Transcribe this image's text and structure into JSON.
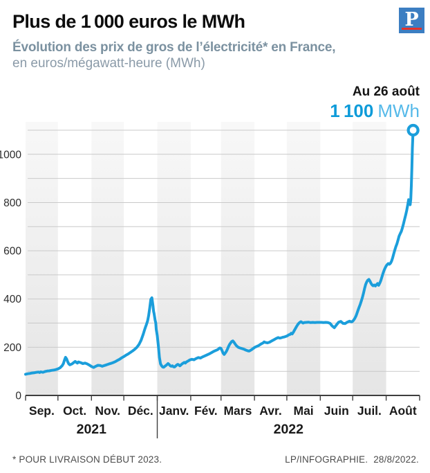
{
  "header": {
    "title": "Plus de 1 000 euros le MWh",
    "subtitle_bold": "Évolution des prix de gros de l’électricité* en France,",
    "subtitle_light": "en euros/mégawatt-heure (MWh)",
    "logo_letter": "P"
  },
  "annotation": {
    "date_label": "Au 26 août",
    "value": "1 100",
    "unit": "MWh"
  },
  "footer": {
    "note": "* POUR LIVRAISON DÉBUT 2023.",
    "credit": "LP/INFOGRAPHIE.",
    "date": "28/8/2022."
  },
  "colors": {
    "line": "#1b9edb",
    "marker_fill": "#ffffff",
    "value_blue": "#0d9bd9",
    "unit_blue": "#55b9e9",
    "grid": "#c9c9c9",
    "axis": "#3e3e3e",
    "band_top": "#f7f7f7",
    "band_bottom": "#e6e6e6",
    "label_dark": "#1a1a1a",
    "ylabel": "#2b2b2b"
  },
  "chart_data": {
    "type": "line",
    "title": "Évolution des prix de gros de l'électricité en France",
    "ylabel": "euros/mégawatt-heure (MWh)",
    "x_unit": "days since 2021-09-01",
    "ylim": [
      0,
      1150
    ],
    "grid_step": 100,
    "grid_max": 1100,
    "y_ticks": [
      0,
      200,
      400,
      600,
      800,
      1000
    ],
    "months": [
      {
        "label": "Sep.",
        "days": 30,
        "shaded": true
      },
      {
        "label": "Oct.",
        "days": 31,
        "shaded": false
      },
      {
        "label": "Nov.",
        "days": 30,
        "shaded": true
      },
      {
        "label": "Déc.",
        "days": 31,
        "shaded": false
      },
      {
        "label": "Janv.",
        "days": 31,
        "shaded": true
      },
      {
        "label": "Fév.",
        "days": 28,
        "shaded": false
      },
      {
        "label": "Mars",
        "days": 31,
        "shaded": true
      },
      {
        "label": "Avr.",
        "days": 30,
        "shaded": false
      },
      {
        "label": "Mai",
        "days": 31,
        "shaded": true
      },
      {
        "label": "Juin",
        "days": 30,
        "shaded": false
      },
      {
        "label": "Juil.",
        "days": 31,
        "shaded": true
      },
      {
        "label": "Août",
        "days": 31,
        "shaded": false
      }
    ],
    "years": [
      {
        "label": "2021",
        "from_month": 0,
        "to_month": 3
      },
      {
        "label": "2022",
        "from_month": 4,
        "to_month": 11
      }
    ],
    "series": [
      [
        0,
        88
      ],
      [
        2,
        90
      ],
      [
        4,
        91
      ],
      [
        6,
        93
      ],
      [
        8,
        94
      ],
      [
        10,
        96
      ],
      [
        12,
        97
      ],
      [
        13,
        95
      ],
      [
        14,
        98
      ],
      [
        16,
        96
      ],
      [
        18,
        99
      ],
      [
        20,
        101
      ],
      [
        22,
        102
      ],
      [
        24,
        104
      ],
      [
        26,
        105
      ],
      [
        28,
        107
      ],
      [
        30,
        110
      ],
      [
        32,
        115
      ],
      [
        34,
        124
      ],
      [
        35,
        132
      ],
      [
        36,
        146
      ],
      [
        37,
        158
      ],
      [
        38,
        152
      ],
      [
        39,
        140
      ],
      [
        40,
        131
      ],
      [
        41,
        127
      ],
      [
        43,
        131
      ],
      [
        45,
        138
      ],
      [
        46,
        141
      ],
      [
        47,
        137
      ],
      [
        48,
        134
      ],
      [
        49,
        139
      ],
      [
        51,
        136
      ],
      [
        53,
        132
      ],
      [
        55,
        134
      ],
      [
        57,
        131
      ],
      [
        59,
        126
      ],
      [
        61,
        120
      ],
      [
        63,
        116
      ],
      [
        65,
        121
      ],
      [
        67,
        125
      ],
      [
        69,
        124
      ],
      [
        71,
        121
      ],
      [
        73,
        124
      ],
      [
        75,
        127
      ],
      [
        77,
        130
      ],
      [
        79,
        133
      ],
      [
        81,
        136
      ],
      [
        83,
        140
      ],
      [
        85,
        145
      ],
      [
        87,
        150
      ],
      [
        89,
        156
      ],
      [
        91,
        161
      ],
      [
        93,
        167
      ],
      [
        95,
        172
      ],
      [
        97,
        178
      ],
      [
        99,
        184
      ],
      [
        101,
        191
      ],
      [
        103,
        199
      ],
      [
        105,
        211
      ],
      [
        107,
        229
      ],
      [
        109,
        254
      ],
      [
        110,
        269
      ],
      [
        111,
        282
      ],
      [
        112,
        295
      ],
      [
        113,
        309
      ],
      [
        114,
        331
      ],
      [
        115,
        363
      ],
      [
        116,
        399
      ],
      [
        117,
        405
      ],
      [
        118,
        372
      ],
      [
        118.6,
        348
      ],
      [
        119,
        341
      ],
      [
        120,
        312
      ],
      [
        120.6,
        301
      ],
      [
        121,
        274
      ],
      [
        122,
        248
      ],
      [
        123,
        205
      ],
      [
        124,
        158
      ],
      [
        125,
        131
      ],
      [
        126,
        123
      ],
      [
        127,
        118
      ],
      [
        128,
        117
      ],
      [
        129,
        121
      ],
      [
        130,
        124
      ],
      [
        131,
        128
      ],
      [
        132,
        132
      ],
      [
        133,
        128
      ],
      [
        134,
        123
      ],
      [
        135,
        121
      ],
      [
        136,
        123
      ],
      [
        137,
        119
      ],
      [
        138,
        118
      ],
      [
        139,
        122
      ],
      [
        140,
        126
      ],
      [
        141,
        129
      ],
      [
        142,
        126
      ],
      [
        143,
        123
      ],
      [
        144,
        127
      ],
      [
        145,
        131
      ],
      [
        146,
        134
      ],
      [
        147,
        137
      ],
      [
        148,
        134
      ],
      [
        149,
        139
      ],
      [
        151,
        144
      ],
      [
        152,
        147
      ],
      [
        154,
        150
      ],
      [
        156,
        148
      ],
      [
        158,
        153
      ],
      [
        160,
        157
      ],
      [
        162,
        155
      ],
      [
        164,
        160
      ],
      [
        166,
        164
      ],
      [
        168,
        168
      ],
      [
        170,
        172
      ],
      [
        172,
        177
      ],
      [
        174,
        182
      ],
      [
        176,
        186
      ],
      [
        178,
        190
      ],
      [
        179,
        194
      ],
      [
        180,
        197
      ],
      [
        181,
        195
      ],
      [
        182,
        186
      ],
      [
        183,
        175
      ],
      [
        184,
        170
      ],
      [
        185,
        176
      ],
      [
        186,
        183
      ],
      [
        187,
        192
      ],
      [
        188,
        203
      ],
      [
        189,
        212
      ],
      [
        190,
        218
      ],
      [
        191,
        224
      ],
      [
        192,
        226
      ],
      [
        193,
        221
      ],
      [
        194,
        214
      ],
      [
        195,
        208
      ],
      [
        196,
        203
      ],
      [
        197,
        200
      ],
      [
        198,
        198
      ],
      [
        200,
        195
      ],
      [
        202,
        192
      ],
      [
        204,
        188
      ],
      [
        206,
        185
      ],
      [
        207,
        184
      ],
      [
        208,
        186
      ],
      [
        209,
        189
      ],
      [
        210,
        192
      ],
      [
        211,
        195
      ],
      [
        212,
        199
      ],
      [
        214,
        203
      ],
      [
        216,
        207
      ],
      [
        218,
        213
      ],
      [
        220,
        218
      ],
      [
        221,
        222
      ],
      [
        222,
        220
      ],
      [
        224,
        218
      ],
      [
        226,
        221
      ],
      [
        228,
        226
      ],
      [
        230,
        231
      ],
      [
        232,
        236
      ],
      [
        234,
        240
      ],
      [
        235,
        238
      ],
      [
        236,
        238
      ],
      [
        238,
        241
      ],
      [
        240,
        243
      ],
      [
        242,
        246
      ],
      [
        243,
        249
      ],
      [
        244,
        252
      ],
      [
        245,
        253
      ],
      [
        246,
        258
      ],
      [
        247,
        255
      ],
      [
        248,
        262
      ],
      [
        249,
        270
      ],
      [
        250,
        278
      ],
      [
        251,
        286
      ],
      [
        252,
        293
      ],
      [
        253,
        299
      ],
      [
        254,
        303
      ],
      [
        255,
        306
      ],
      [
        256,
        303
      ],
      [
        257,
        300
      ],
      [
        258,
        302
      ],
      [
        260,
        303
      ],
      [
        262,
        304
      ],
      [
        264,
        302
      ],
      [
        266,
        303
      ],
      [
        268,
        302
      ],
      [
        270,
        303
      ],
      [
        272,
        303
      ],
      [
        274,
        303
      ],
      [
        276,
        302
      ],
      [
        278,
        303
      ],
      [
        280,
        302
      ],
      [
        282,
        299
      ],
      [
        284,
        288
      ],
      [
        286,
        281
      ],
      [
        288,
        293
      ],
      [
        290,
        304
      ],
      [
        292,
        307
      ],
      [
        294,
        299
      ],
      [
        296,
        298
      ],
      [
        298,
        304
      ],
      [
        300,
        308
      ],
      [
        302,
        305
      ],
      [
        303,
        308
      ],
      [
        304,
        313
      ],
      [
        305,
        320
      ],
      [
        306,
        329
      ],
      [
        307,
        341
      ],
      [
        308,
        354
      ],
      [
        309,
        366
      ],
      [
        310,
        378
      ],
      [
        311,
        392
      ],
      [
        312,
        406
      ],
      [
        313,
        424
      ],
      [
        314,
        444
      ],
      [
        315,
        460
      ],
      [
        316,
        471
      ],
      [
        317,
        478
      ],
      [
        318,
        481
      ],
      [
        319,
        474
      ],
      [
        320,
        465
      ],
      [
        321,
        458
      ],
      [
        322,
        455
      ],
      [
        323,
        458
      ],
      [
        324,
        454
      ],
      [
        325,
        459
      ],
      [
        326,
        464
      ],
      [
        327,
        457
      ],
      [
        328,
        465
      ],
      [
        329,
        476
      ],
      [
        330,
        490
      ],
      [
        331,
        505
      ],
      [
        332,
        518
      ],
      [
        333,
        528
      ],
      [
        334,
        537
      ],
      [
        335,
        543
      ],
      [
        336,
        547
      ],
      [
        337,
        544
      ],
      [
        338,
        548
      ],
      [
        339,
        557
      ],
      [
        340,
        571
      ],
      [
        341,
        587
      ],
      [
        342,
        603
      ],
      [
        343,
        617
      ],
      [
        344,
        629
      ],
      [
        345,
        645
      ],
      [
        346,
        661
      ],
      [
        347,
        671
      ],
      [
        348,
        680
      ],
      [
        349,
        694
      ],
      [
        350,
        711
      ],
      [
        351,
        729
      ],
      [
        352,
        747
      ],
      [
        353,
        767
      ],
      [
        354,
        790
      ],
      [
        354.8,
        812
      ],
      [
        355.6,
        797
      ],
      [
        356.2,
        791
      ],
      [
        356.8,
        814
      ],
      [
        357.3,
        870
      ],
      [
        357.8,
        945
      ],
      [
        358.3,
        1025
      ],
      [
        358.7,
        1075
      ],
      [
        359,
        1100
      ]
    ],
    "end_point": {
      "day": 359,
      "value": 1100,
      "date": "26 août 2022",
      "display": "1 100 MWh"
    }
  }
}
